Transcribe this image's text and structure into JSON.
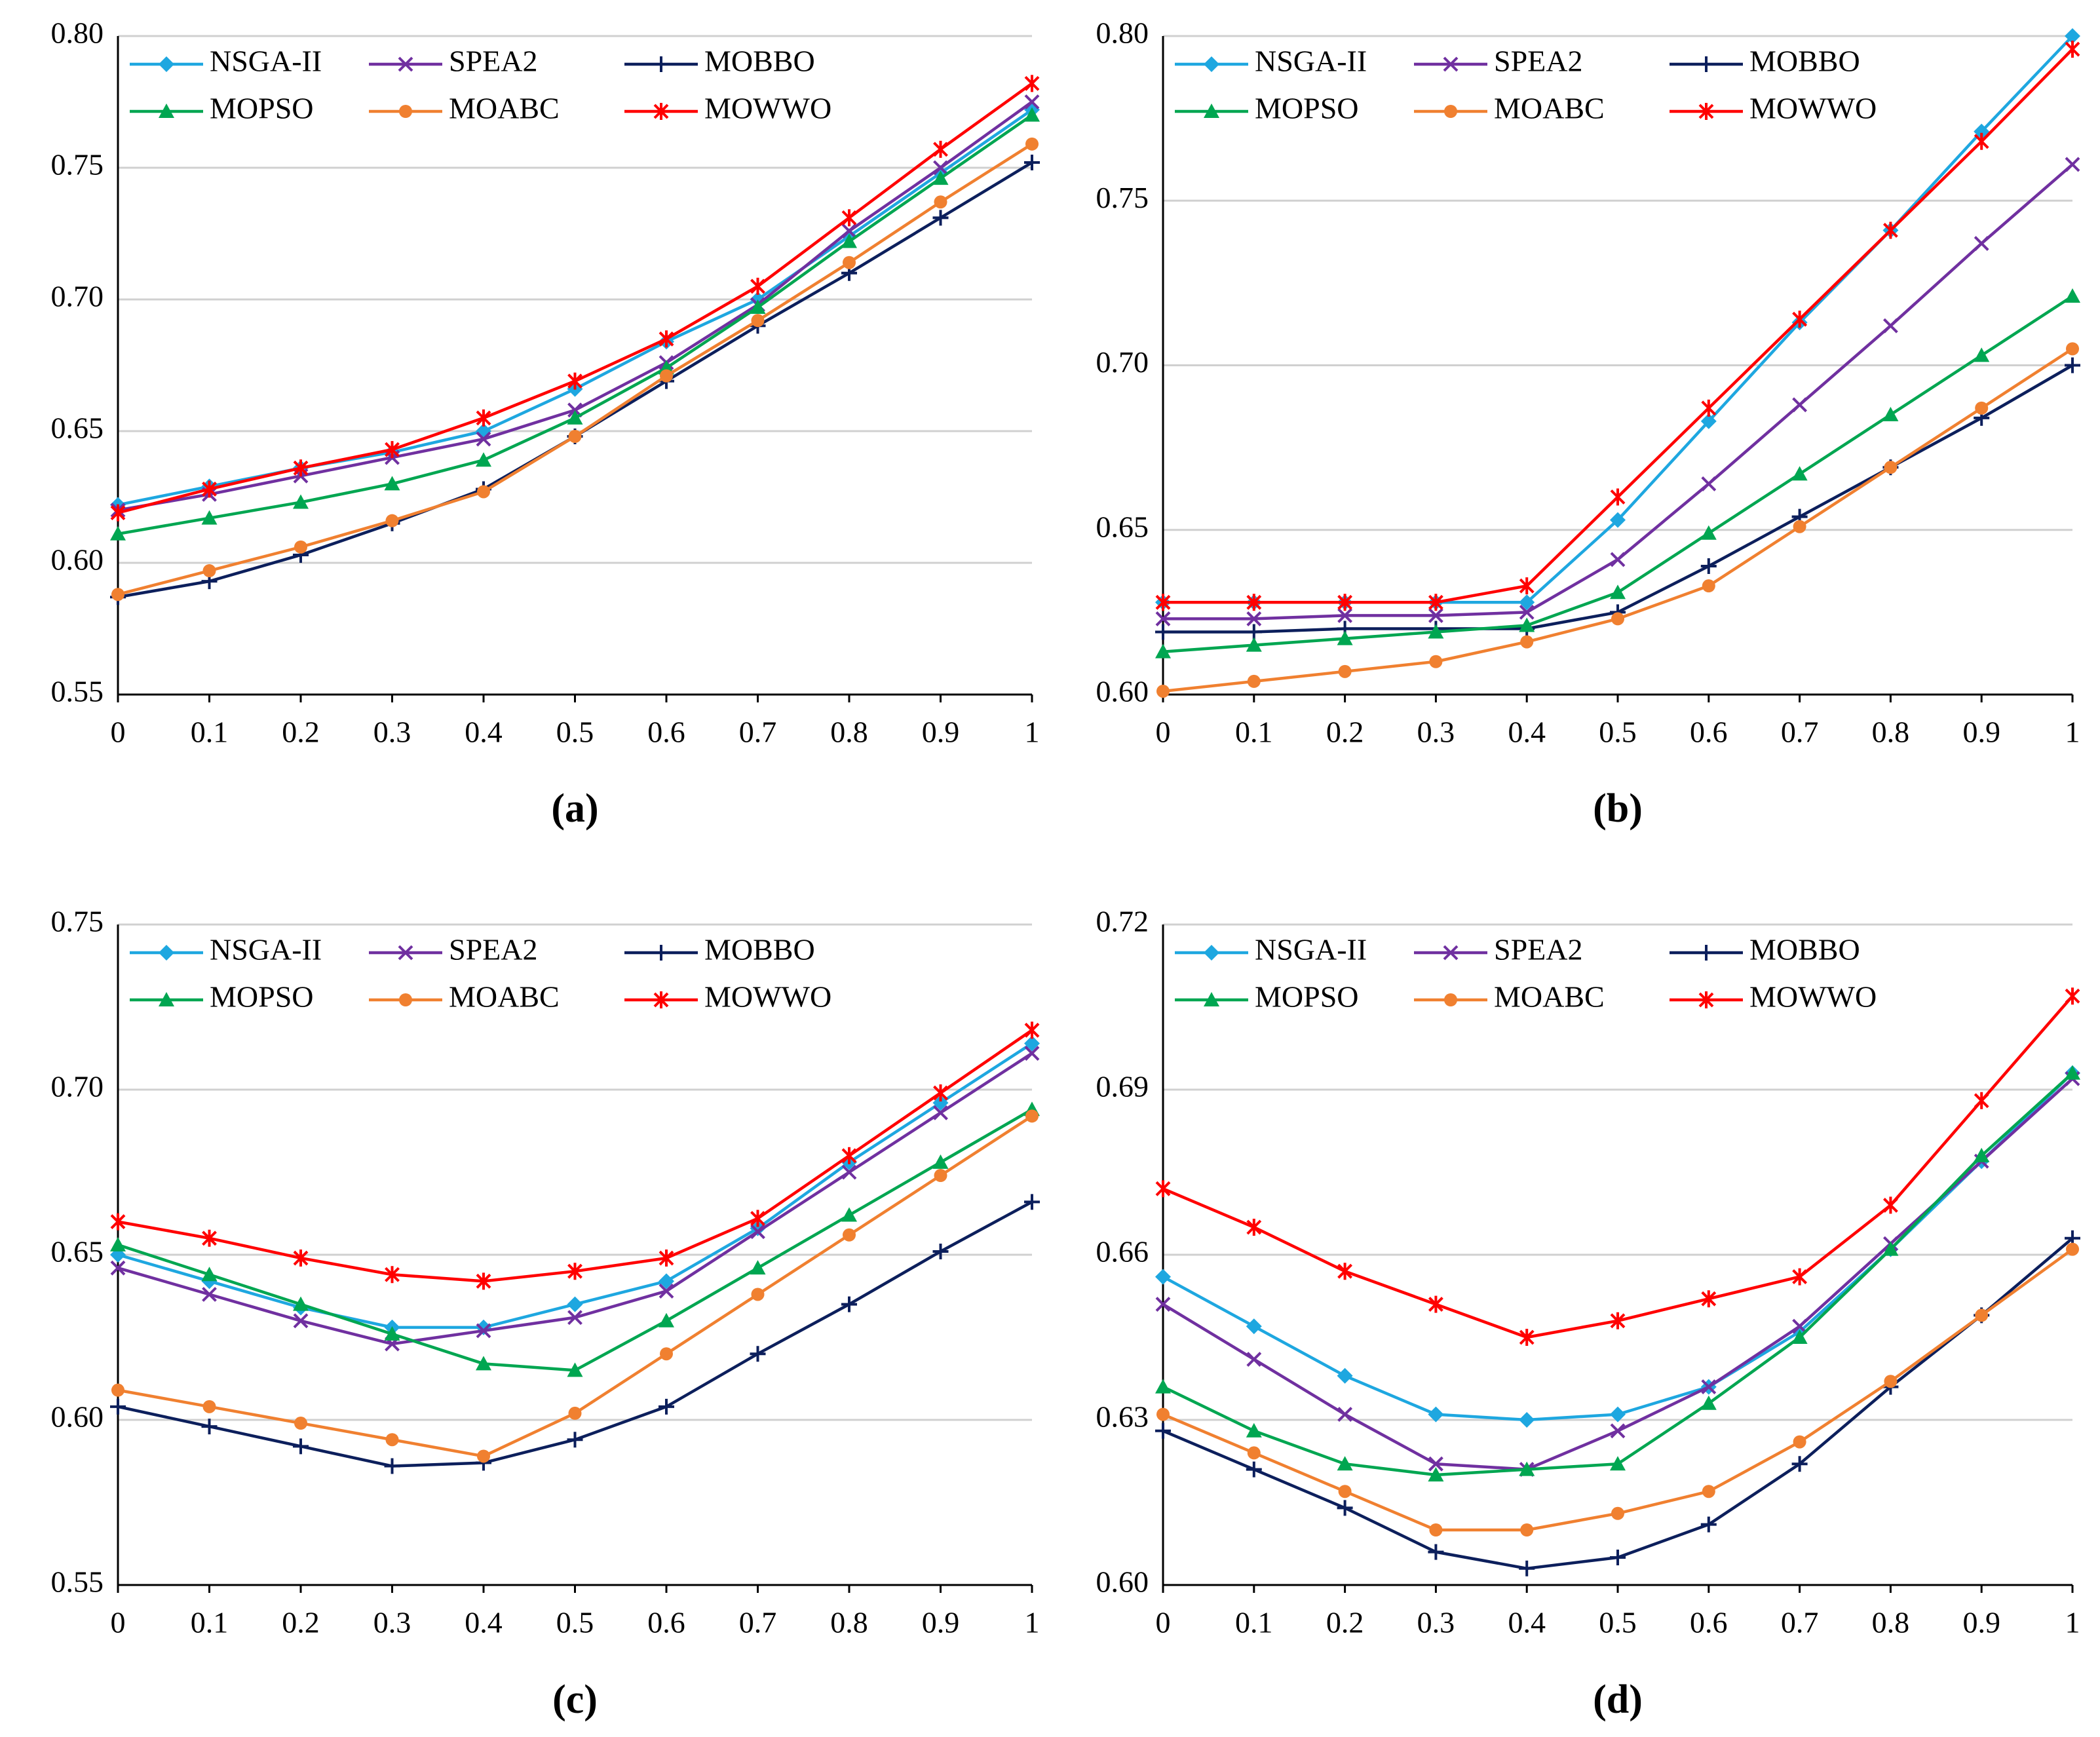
{
  "chart_data": [
    {
      "type": "line",
      "caption": "(a)",
      "grid": true,
      "legend": "upper left",
      "x": [
        0,
        0.1,
        0.2,
        0.3,
        0.4,
        0.5,
        0.6,
        0.7,
        0.8,
        0.9,
        1
      ],
      "xlim": [
        0,
        1
      ],
      "xticks": [
        0,
        0.1,
        0.2,
        0.3,
        0.4,
        0.5,
        0.6,
        0.7,
        0.8,
        0.9,
        1
      ],
      "ylim": [
        0.55,
        0.8
      ],
      "yticks": [
        0.55,
        {
          "value": 0.6,
          "label": "0.60"
        },
        0.65,
        {
          "value": 0.7,
          "label": "0.70"
        },
        0.75,
        {
          "value": 0.8,
          "label": "0.80"
        }
      ],
      "series": [
        {
          "name": "NSGA-II",
          "color": "#1ea7e0",
          "marker": "diamond",
          "values": [
            0.622,
            0.629,
            0.636,
            0.642,
            0.65,
            0.666,
            0.684,
            0.7,
            0.724,
            0.748,
            0.772
          ]
        },
        {
          "name": "SPEA2",
          "color": "#7030a0",
          "marker": "x",
          "values": [
            0.62,
            0.626,
            0.633,
            0.64,
            0.647,
            0.658,
            0.676,
            0.698,
            0.726,
            0.75,
            0.775
          ]
        },
        {
          "name": "MOBBO",
          "color": "#0c1f5c",
          "marker": "plus",
          "values": [
            0.587,
            0.593,
            0.603,
            0.615,
            0.628,
            0.648,
            0.669,
            0.69,
            0.71,
            0.731,
            0.752
          ]
        },
        {
          "name": "MOPSO",
          "color": "#00a651",
          "marker": "triangle",
          "values": [
            0.611,
            0.617,
            0.623,
            0.63,
            0.639,
            0.655,
            0.674,
            0.697,
            0.722,
            0.746,
            0.77
          ]
        },
        {
          "name": "MOABC",
          "color": "#f08030",
          "marker": "circle",
          "values": [
            0.588,
            0.597,
            0.606,
            0.616,
            0.627,
            0.648,
            0.671,
            0.692,
            0.714,
            0.737,
            0.759
          ]
        },
        {
          "name": "MOWWO",
          "color": "#ff0000",
          "marker": "star",
          "values": [
            0.619,
            0.628,
            0.636,
            0.643,
            0.655,
            0.669,
            0.685,
            0.705,
            0.731,
            0.757,
            0.782
          ]
        }
      ]
    },
    {
      "type": "line",
      "caption": "(b)",
      "grid": true,
      "legend": "upper left",
      "x": [
        0,
        0.1,
        0.2,
        0.3,
        0.4,
        0.5,
        0.6,
        0.7,
        0.8,
        0.9,
        1
      ],
      "xlim": [
        0,
        1
      ],
      "xticks": [
        0,
        0.1,
        0.2,
        0.3,
        0.4,
        0.5,
        0.6,
        0.7,
        0.8,
        0.9,
        1
      ],
      "ylim": [
        0.6,
        0.8
      ],
      "yticks": [
        {
          "value": 0.6,
          "label": "0.60"
        },
        0.65,
        {
          "value": 0.7,
          "label": "0.70"
        },
        0.75,
        {
          "value": 0.8,
          "label": "0.80"
        }
      ],
      "series": [
        {
          "name": "NSGA-II",
          "color": "#1ea7e0",
          "marker": "diamond",
          "values": [
            0.628,
            0.628,
            0.628,
            0.628,
            0.628,
            0.653,
            0.683,
            0.713,
            0.741,
            0.771,
            0.8
          ]
        },
        {
          "name": "SPEA2",
          "color": "#7030a0",
          "marker": "x",
          "values": [
            0.623,
            0.623,
            0.624,
            0.624,
            0.625,
            0.641,
            0.664,
            0.688,
            0.712,
            0.737,
            0.761
          ]
        },
        {
          "name": "MOBBO",
          "color": "#0c1f5c",
          "marker": "plus",
          "values": [
            0.619,
            0.619,
            0.62,
            0.62,
            0.62,
            0.625,
            0.639,
            0.654,
            0.669,
            0.684,
            0.7
          ]
        },
        {
          "name": "MOPSO",
          "color": "#00a651",
          "marker": "triangle",
          "values": [
            0.613,
            0.615,
            0.617,
            0.619,
            0.621,
            0.631,
            0.649,
            0.667,
            0.685,
            0.703,
            0.721
          ]
        },
        {
          "name": "MOABC",
          "color": "#f08030",
          "marker": "circle",
          "values": [
            0.601,
            0.604,
            0.607,
            0.61,
            0.616,
            0.623,
            0.633,
            0.651,
            0.669,
            0.687,
            0.705
          ]
        },
        {
          "name": "MOWWO",
          "color": "#ff0000",
          "marker": "star",
          "values": [
            0.628,
            0.628,
            0.628,
            0.628,
            0.633,
            0.66,
            0.687,
            0.714,
            0.741,
            0.768,
            0.796
          ]
        }
      ]
    },
    {
      "type": "line",
      "caption": "(c)",
      "grid": true,
      "legend": "upper left",
      "x": [
        0,
        0.1,
        0.2,
        0.3,
        0.4,
        0.5,
        0.6,
        0.7,
        0.8,
        0.9,
        1
      ],
      "xlim": [
        0,
        1
      ],
      "xticks": [
        0,
        0.1,
        0.2,
        0.3,
        0.4,
        0.5,
        0.6,
        0.7,
        0.8,
        0.9,
        1
      ],
      "ylim": [
        0.55,
        0.75
      ],
      "yticks": [
        0.55,
        {
          "value": 0.6,
          "label": "0.60"
        },
        0.65,
        {
          "value": 0.7,
          "label": "0.70"
        },
        0.75
      ],
      "series": [
        {
          "name": "NSGA-II",
          "color": "#1ea7e0",
          "marker": "diamond",
          "values": [
            0.65,
            0.642,
            0.634,
            0.628,
            0.628,
            0.635,
            0.642,
            0.658,
            0.678,
            0.696,
            0.714
          ]
        },
        {
          "name": "SPEA2",
          "color": "#7030a0",
          "marker": "x",
          "values": [
            0.646,
            0.638,
            0.63,
            0.623,
            0.627,
            0.631,
            0.639,
            0.657,
            0.675,
            0.693,
            0.711
          ]
        },
        {
          "name": "MOBBO",
          "color": "#0c1f5c",
          "marker": "plus",
          "values": [
            0.604,
            0.598,
            0.592,
            0.586,
            0.587,
            0.594,
            0.604,
            0.62,
            0.635,
            0.651,
            0.666
          ]
        },
        {
          "name": "MOPSO",
          "color": "#00a651",
          "marker": "triangle",
          "values": [
            0.653,
            0.644,
            0.635,
            0.626,
            0.617,
            0.615,
            0.63,
            0.646,
            0.662,
            0.678,
            0.694
          ]
        },
        {
          "name": "MOABC",
          "color": "#f08030",
          "marker": "circle",
          "values": [
            0.609,
            0.604,
            0.599,
            0.594,
            0.589,
            0.602,
            0.62,
            0.638,
            0.656,
            0.674,
            0.692
          ]
        },
        {
          "name": "MOWWO",
          "color": "#ff0000",
          "marker": "star",
          "values": [
            0.66,
            0.655,
            0.649,
            0.644,
            0.642,
            0.645,
            0.649,
            0.661,
            0.68,
            0.699,
            0.718
          ]
        }
      ]
    },
    {
      "type": "line",
      "caption": "(d)",
      "grid": true,
      "legend": "upper left",
      "x": [
        0,
        0.1,
        0.2,
        0.3,
        0.4,
        0.5,
        0.6,
        0.7,
        0.8,
        0.9,
        1
      ],
      "xlim": [
        0,
        1
      ],
      "xticks": [
        0,
        0.1,
        0.2,
        0.3,
        0.4,
        0.5,
        0.6,
        0.7,
        0.8,
        0.9,
        1
      ],
      "ylim": [
        0.6,
        0.72
      ],
      "yticks": [
        {
          "value": 0.6,
          "label": "0.60"
        },
        0.63,
        0.66,
        0.69,
        0.72
      ],
      "series": [
        {
          "name": "NSGA-II",
          "color": "#1ea7e0",
          "marker": "diamond",
          "values": [
            0.656,
            0.647,
            0.638,
            0.631,
            0.63,
            0.631,
            0.636,
            0.646,
            0.661,
            0.677,
            0.693
          ]
        },
        {
          "name": "SPEA2",
          "color": "#7030a0",
          "marker": "x",
          "values": [
            0.651,
            0.641,
            0.631,
            0.622,
            0.621,
            0.628,
            0.636,
            0.647,
            0.662,
            0.677,
            0.692
          ]
        },
        {
          "name": "MOBBO",
          "color": "#0c1f5c",
          "marker": "plus",
          "values": [
            0.628,
            0.621,
            0.614,
            0.606,
            0.603,
            0.605,
            0.611,
            0.622,
            0.636,
            0.649,
            0.663
          ]
        },
        {
          "name": "MOPSO",
          "color": "#00a651",
          "marker": "triangle",
          "values": [
            0.636,
            0.628,
            0.622,
            0.62,
            0.621,
            0.622,
            0.633,
            0.645,
            0.661,
            0.678,
            0.693
          ]
        },
        {
          "name": "MOABC",
          "color": "#f08030",
          "marker": "circle",
          "values": [
            0.631,
            0.624,
            0.617,
            0.61,
            0.61,
            0.613,
            0.617,
            0.626,
            0.637,
            0.649,
            0.661
          ]
        },
        {
          "name": "MOWWO",
          "color": "#ff0000",
          "marker": "star",
          "values": [
            0.672,
            0.665,
            0.657,
            0.651,
            0.645,
            0.648,
            0.652,
            0.656,
            0.669,
            0.688,
            0.707
          ]
        }
      ]
    }
  ]
}
